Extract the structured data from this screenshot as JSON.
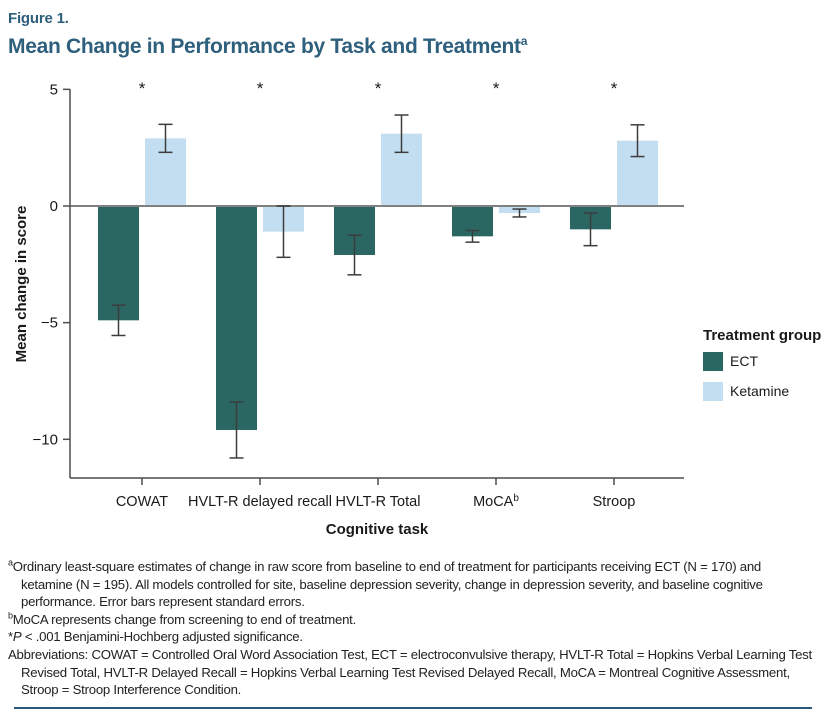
{
  "figure": {
    "label": "Figure 1.",
    "title": "Mean Change in Performance by Task and Treatment",
    "title_superscript": "a"
  },
  "colors": {
    "title": "#2E5F7C",
    "rule": "#27597A",
    "axis": "#4D4D4D",
    "zero_line": "#808080",
    "error_bar": "#3C3C3C",
    "text": "#1A1A1A",
    "ect": "#2A6763",
    "ketamine": "#C4DEF1"
  },
  "chart_data": {
    "type": "bar",
    "title": "Mean Change in Performance by Task and Treatment",
    "xlabel": "Cognitive task",
    "ylabel": "Mean change in score",
    "categories": [
      "COWAT",
      "HVLT-R delayed recall",
      "HVLT-R Total",
      "MoCA",
      "Stroop"
    ],
    "category_superscripts": [
      "",
      "",
      "",
      "b",
      ""
    ],
    "series": [
      {
        "name": "ECT",
        "color": "#2A6763",
        "values": [
          -4.9,
          -9.6,
          -2.1,
          -1.3,
          -1.0
        ],
        "std_errors": [
          0.65,
          1.2,
          0.85,
          0.25,
          0.7
        ]
      },
      {
        "name": "Ketamine",
        "color": "#C4DEF1",
        "values": [
          2.9,
          -1.1,
          3.1,
          -0.3,
          2.8
        ],
        "std_errors": [
          0.6,
          1.1,
          0.8,
          0.17,
          0.68
        ]
      }
    ],
    "error_bars": "standard errors",
    "significance_marker": "*",
    "significant_categories": [
      true,
      true,
      true,
      true,
      true
    ],
    "yticks": [
      5,
      0,
      -5,
      -10
    ],
    "ylim": [
      -11.7,
      5
    ],
    "grid": false,
    "legend_title": "Treatment group",
    "legend_entries": [
      "ECT",
      "Ketamine"
    ],
    "legend_position": "right"
  },
  "footnotes": {
    "a": {
      "sup": "a",
      "text": "Ordinary least-square estimates of change in raw score from baseline to end of treatment for participants receiving ECT (N = 170) and ketamine (N = 195). All models controlled for site, baseline depression severity, change in depression severity, and baseline cognitive performance. Error bars represent standard errors."
    },
    "b": {
      "sup": "b",
      "text": "MoCA represents change from screening to end of treatment."
    },
    "significance": {
      "prefix": "*",
      "italic": "P",
      "text": " < .001 Benjamini-Hochberg adjusted significance."
    },
    "abbreviations": {
      "text": "Abbreviations: COWAT = Controlled Oral Word Association Test, ECT = electroconvulsive therapy, HVLT-R Total = Hopkins Verbal Learning Test Revised Total, HVLT-R Delayed Recall = Hopkins Verbal Learning Test Revised Delayed Recall, MoCA = Montreal Cognitive Assessment, Stroop = Stroop Interference Condition."
    }
  }
}
